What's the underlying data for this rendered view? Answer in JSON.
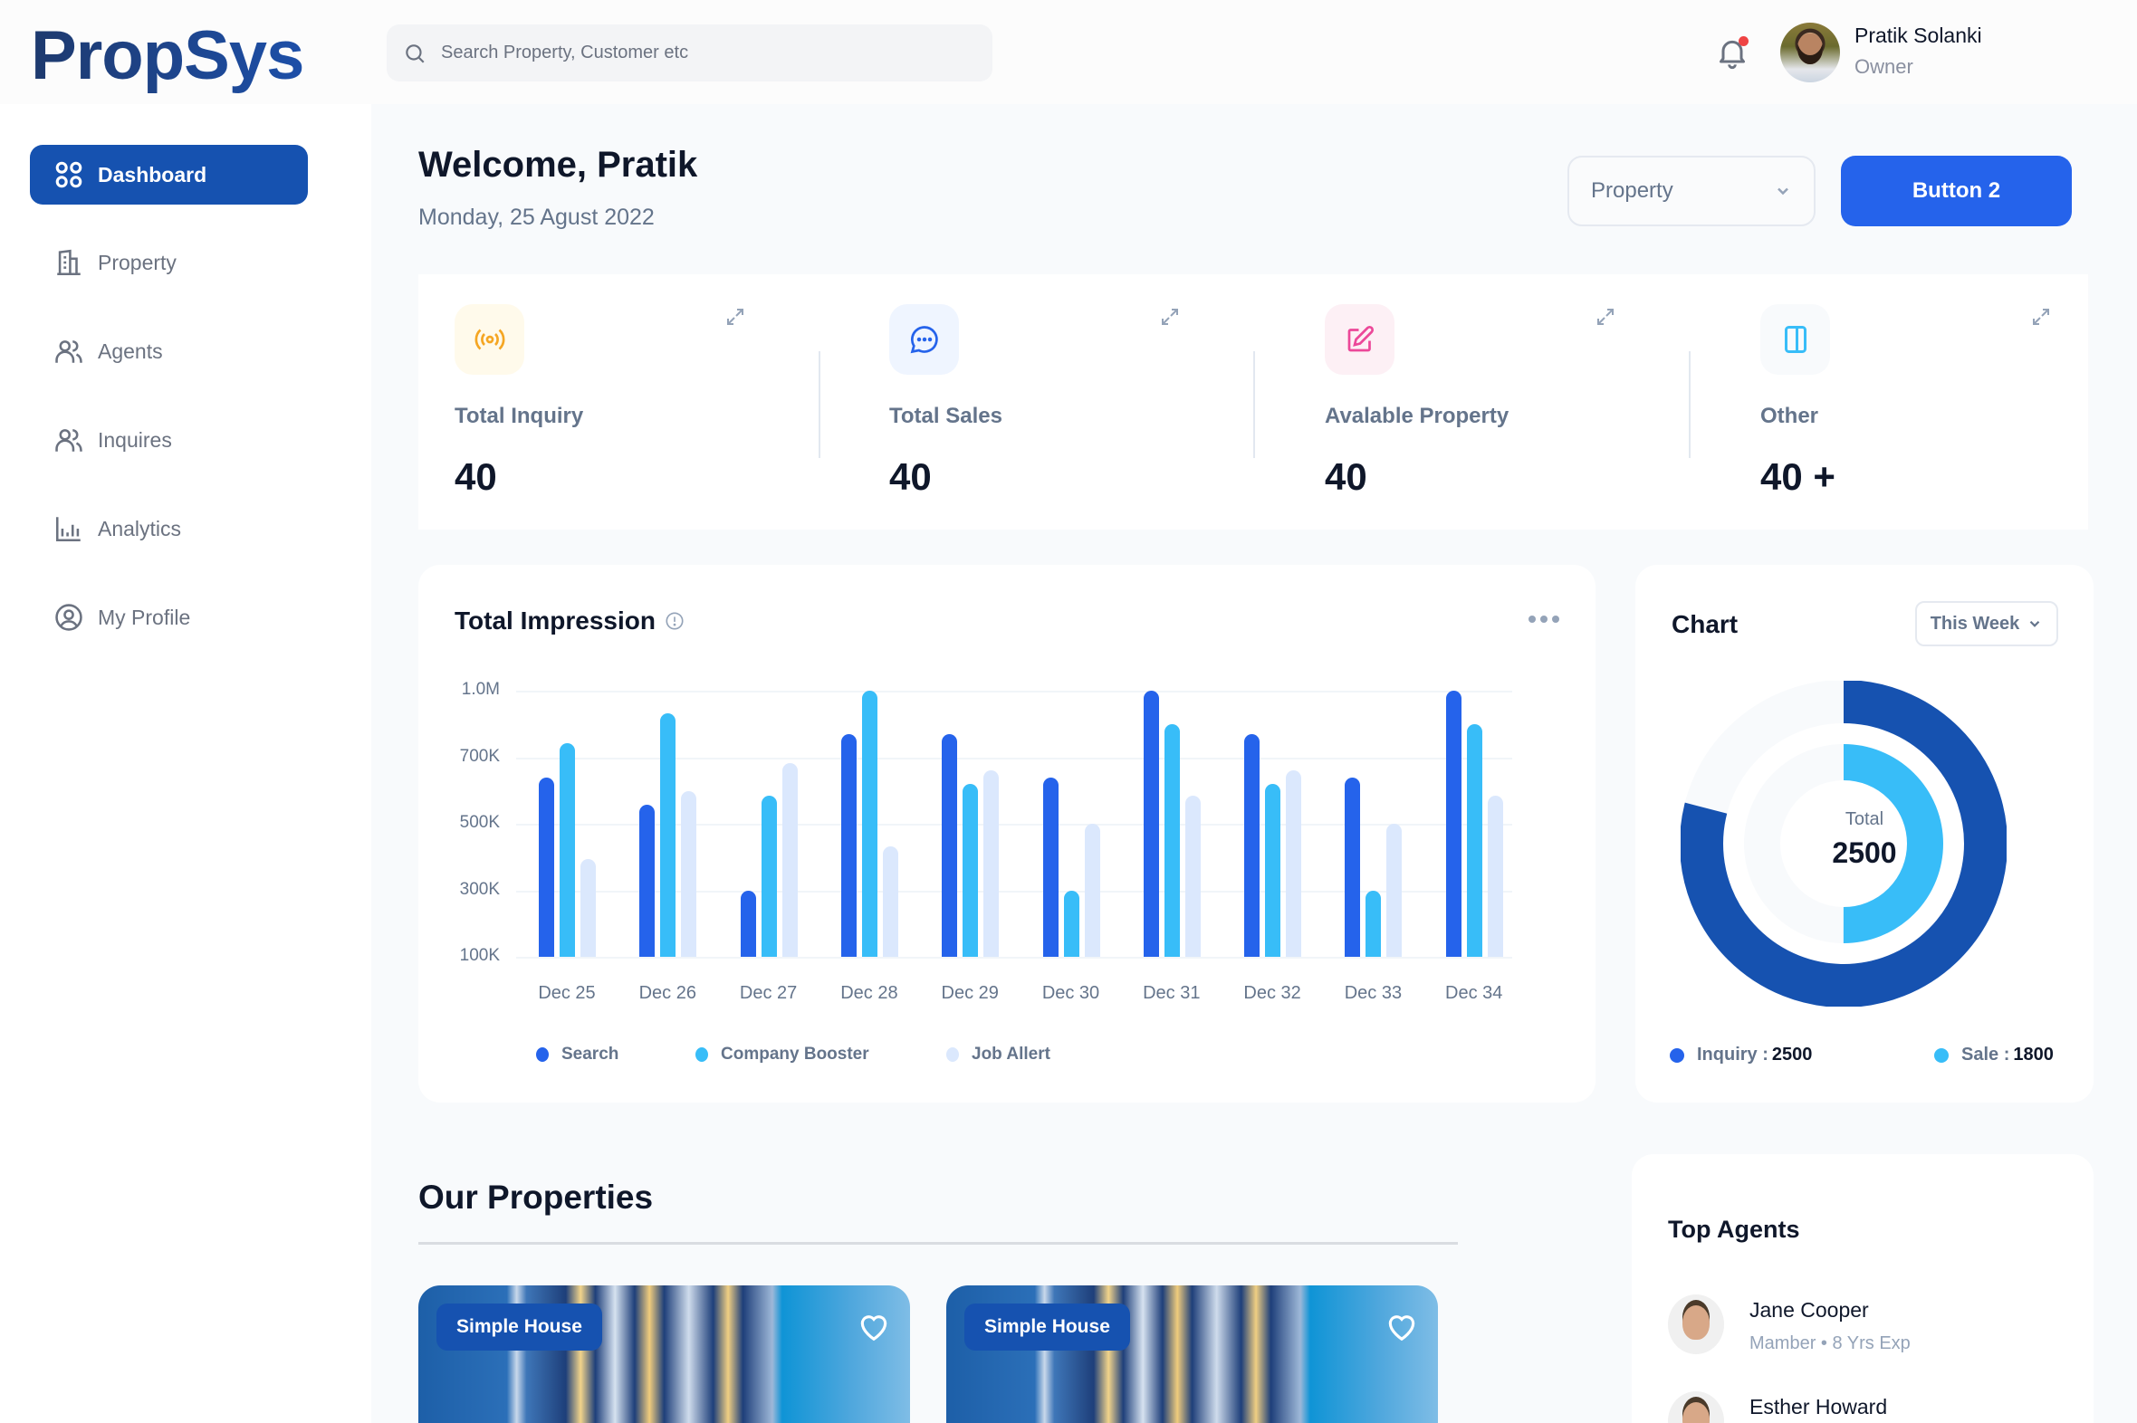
{
  "app": {
    "name": "PropSys"
  },
  "header": {
    "search_placeholder": "Search Property, Customer etc",
    "user": {
      "name": "Pratik Solanki",
      "role": "Owner"
    },
    "notification_dot": true
  },
  "sidebar": {
    "items": [
      {
        "label": "Dashboard",
        "icon": "grid-icon",
        "active": true
      },
      {
        "label": "Property",
        "icon": "building-icon"
      },
      {
        "label": "Agents",
        "icon": "users-icon"
      },
      {
        "label": "Inquires",
        "icon": "users-icon"
      },
      {
        "label": "Analytics",
        "icon": "bar-chart-icon"
      },
      {
        "label": "My Profile",
        "icon": "user-circle-icon"
      }
    ]
  },
  "main": {
    "title": "Welcome, Pratik",
    "date": "Monday, 25 Agust 2022",
    "dropdown": {
      "value": "Property"
    },
    "button2": "Button 2"
  },
  "stats": [
    {
      "label": "Total Inquiry",
      "value": "40",
      "icon": "broadcast-icon",
      "color": "#f5a623",
      "bg": "#fffaeb"
    },
    {
      "label": "Total Sales",
      "value": "40",
      "icon": "chat-bubble-icon",
      "color": "#2563eb",
      "bg": "#eff5ff"
    },
    {
      "label": "Avalable Property",
      "value": "40",
      "icon": "edit-icon",
      "color": "#ec4899",
      "bg": "#fdf0f5"
    },
    {
      "label": "Other",
      "value": "40 +",
      "icon": "sidebar-panel-icon",
      "color": "#38bdf8",
      "bg": "#f8fafc"
    }
  ],
  "impression": {
    "title": "Total Impression",
    "legend": [
      {
        "label": "Search",
        "color": "#2563eb"
      },
      {
        "label": "Company Booster",
        "color": "#38bdf8"
      },
      {
        "label": "Job Allert",
        "color": "#dbe8fd"
      }
    ]
  },
  "donut_card": {
    "title": "Chart",
    "period": "This Week",
    "total_label": "Total",
    "total_value": "2500",
    "legend": [
      {
        "label": "Inquiry :",
        "value": "2500",
        "color": "#2563eb"
      },
      {
        "label": "Sale :",
        "value": "1800",
        "color": "#38bdf8"
      }
    ]
  },
  "properties": {
    "title": "Our Properties",
    "items": [
      {
        "badge": "Simple House"
      },
      {
        "badge": "Simple House"
      }
    ]
  },
  "top_agents": {
    "title": "Top Agents",
    "items": [
      {
        "name": "Jane Cooper",
        "meta": "Mamber • 8 Yrs Exp"
      },
      {
        "name": "Esther Howard",
        "meta": ""
      }
    ]
  },
  "chart_data": [
    {
      "type": "bar",
      "title": "Total Impression",
      "xlabel": "",
      "ylabel": "",
      "y_ticks": [
        "100K",
        "300K",
        "500K",
        "700K",
        "1.0M"
      ],
      "y_scale_note": "ticks equally spaced (non-linear)",
      "grid": true,
      "legend_position": "bottom",
      "categories": [
        "Dec 25",
        "Dec 26",
        "Dec 27",
        "Dec 28",
        "Dec 29",
        "Dec 30",
        "Dec 31",
        "Dec 32",
        "Dec 33",
        "Dec 34"
      ],
      "series": [
        {
          "name": "Search",
          "color": "#2563eb",
          "values": [
            640000,
            556000,
            300000,
            805000,
            805000,
            640000,
            1000000,
            805000,
            640000,
            1000000
          ]
        },
        {
          "name": "Company Booster",
          "color": "#38bdf8",
          "values": [
            765000,
            900000,
            584000,
            1000000,
            620000,
            300000,
            850000,
            620000,
            300000,
            850000
          ]
        },
        {
          "name": "Job Allert",
          "color": "#dbe8fd",
          "values": [
            393000,
            598000,
            682000,
            432000,
            660000,
            500000,
            584000,
            660000,
            500000,
            584000
          ]
        }
      ]
    },
    {
      "type": "pie",
      "title": "Chart",
      "subtitle": "This Week",
      "center_label": "Total 2500",
      "series": [
        {
          "name": "Inquiry",
          "value": 2500,
          "ring": "outer",
          "fill_fraction": 0.79,
          "color": "#1652b0"
        },
        {
          "name": "Sale",
          "value": 1800,
          "ring": "inner",
          "fill_fraction": 0.5,
          "color": "#38bdf8"
        }
      ],
      "legend_position": "bottom"
    }
  ]
}
